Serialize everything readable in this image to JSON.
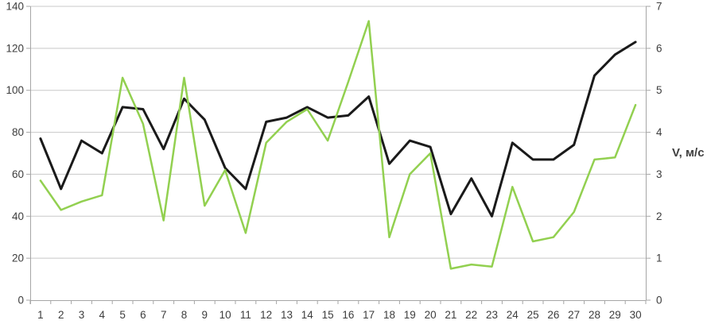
{
  "chart_data": {
    "type": "line",
    "title": "",
    "legend": false,
    "grid": true,
    "x_axis": {
      "tick_labels": [
        "1",
        "2",
        "3",
        "4",
        "5",
        "6",
        "7",
        "8",
        "9",
        "10",
        "11",
        "12",
        "13",
        "14",
        "15",
        "16",
        "17",
        "18",
        "19",
        "20",
        "21",
        "22",
        "23",
        "24",
        "25",
        "26",
        "27",
        "28",
        "29",
        "30"
      ]
    },
    "left_axis": {
      "min": 0,
      "max": 140,
      "step": 20,
      "tick_labels": [
        "0",
        "20",
        "40",
        "60",
        "80",
        "100",
        "120",
        "140"
      ],
      "label": ""
    },
    "right_axis": {
      "min": 0,
      "max": 7,
      "step": 1,
      "tick_labels": [
        "0",
        "1",
        "2",
        "3",
        "4",
        "5",
        "6",
        "7"
      ],
      "label": "V, м/с"
    },
    "series": [
      {
        "name": "black-series",
        "axis": "left",
        "color": "#1a1a1a",
        "stroke_width": 3,
        "values": [
          77,
          53,
          76,
          70,
          92,
          91,
          72,
          96,
          86,
          63,
          53,
          85,
          87,
          92,
          87,
          88,
          97,
          65,
          76,
          73,
          41,
          58,
          40,
          75,
          67,
          67,
          74,
          107,
          117,
          123
        ]
      },
      {
        "name": "green-series-wind-speed",
        "axis": "right",
        "color": "#92d050",
        "stroke_width": 2.5,
        "values": [
          2.85,
          2.15,
          2.35,
          2.5,
          5.3,
          4.2,
          1.9,
          5.3,
          2.25,
          3.1,
          1.6,
          3.75,
          4.25,
          4.55,
          3.8,
          5.2,
          6.65,
          1.5,
          3.0,
          3.5,
          0.75,
          0.85,
          0.8,
          2.7,
          1.4,
          1.5,
          2.1,
          3.35,
          3.4,
          4.65
        ]
      }
    ]
  },
  "colors": {
    "gridline": "#c8c8c8",
    "axis_line": "#a6a6a6",
    "tick_text": "#3d3d3d",
    "background": "#ffffff"
  },
  "layout_text": {}
}
